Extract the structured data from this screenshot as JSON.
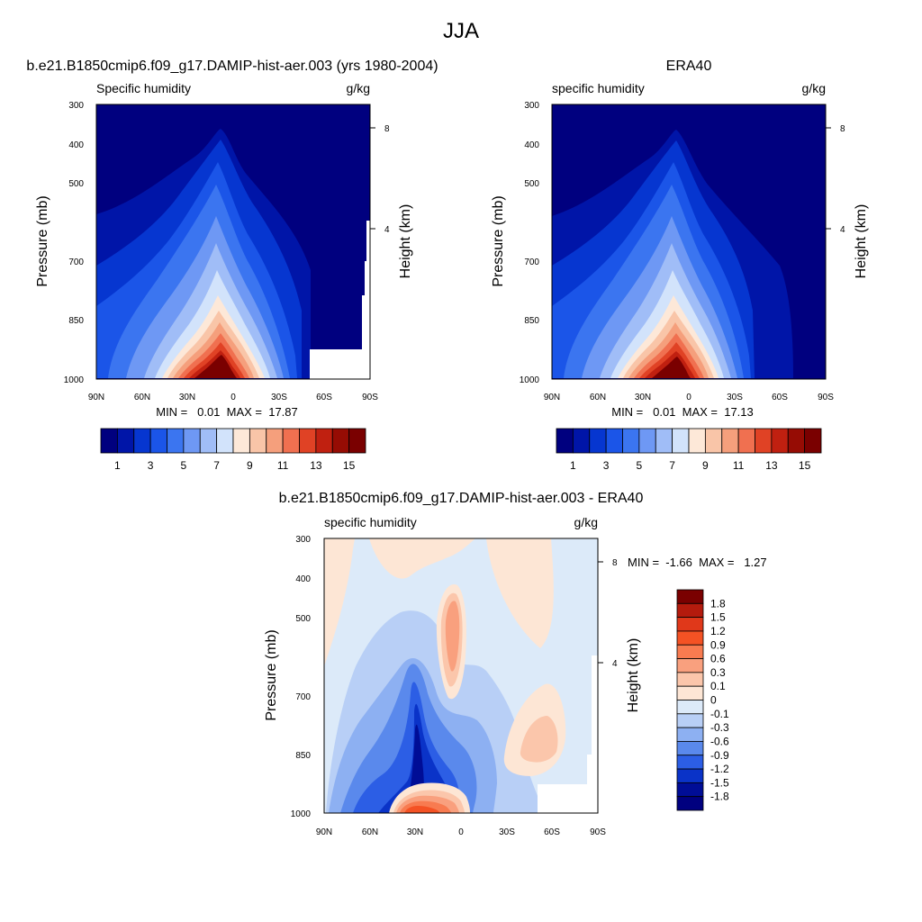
{
  "figure": {
    "title": "JJA"
  },
  "panels": [
    {
      "id": "model",
      "title": "b.e21.B1850cmip6.f09_g17.DAMIP-hist-aer.003 (yrs 1980-2004)",
      "left_label": "Specific humidity",
      "right_label": "g/kg",
      "ylabel": "Pressure (mb)",
      "y2label": "Height (km)",
      "stats": "MIN =   0.01  MAX =  17.87"
    },
    {
      "id": "obs",
      "title": "ERA40",
      "left_label": "specific humidity",
      "right_label": "g/kg",
      "ylabel": "Pressure (mb)",
      "y2label": "Height (km)",
      "stats": "MIN =   0.01  MAX =  17.13"
    },
    {
      "id": "diff",
      "title": "b.e21.B1850cmip6.f09_g17.DAMIP-hist-aer.003 - ERA40",
      "left_label": "specific humidity",
      "right_label": "g/kg",
      "ylabel": "Pressure (mb)",
      "y2label": "Height (km)",
      "stats": "MIN =  -1.66  MAX =   1.27"
    }
  ],
  "chart_data": [
    {
      "type": "heatmap",
      "panel": "model",
      "field": "specific humidity (g/kg), zonal mean",
      "x_ticks": [
        "90N",
        "60N",
        "30N",
        "0",
        "30S",
        "60S",
        "90S"
      ],
      "y_ticks": [
        "300",
        "400",
        "500",
        "700",
        "850",
        "1000"
      ],
      "y2_ticks": [
        "8",
        "4"
      ],
      "min": 0.01,
      "max": 17.87,
      "peak": {
        "lat": 10,
        "pressure": 1000,
        "value": 17.87
      },
      "colorbar_ticks": [
        "1",
        "3",
        "5",
        "7",
        "9",
        "11",
        "13",
        "15"
      ]
    },
    {
      "type": "heatmap",
      "panel": "obs",
      "field": "specific humidity (g/kg), zonal mean",
      "x_ticks": [
        "90N",
        "60N",
        "30N",
        "0",
        "30S",
        "60S",
        "90S"
      ],
      "y_ticks": [
        "300",
        "400",
        "500",
        "700",
        "850",
        "1000"
      ],
      "y2_ticks": [
        "8",
        "4"
      ],
      "min": 0.01,
      "max": 17.13,
      "peak": {
        "lat": 10,
        "pressure": 1000,
        "value": 17.13
      },
      "colorbar_ticks": [
        "1",
        "3",
        "5",
        "7",
        "9",
        "11",
        "13",
        "15"
      ]
    },
    {
      "type": "heatmap",
      "panel": "diff",
      "field": "specific humidity difference (g/kg)",
      "x_ticks": [
        "90N",
        "60N",
        "30N",
        "0",
        "30S",
        "60S",
        "90S"
      ],
      "y_ticks": [
        "300",
        "400",
        "500",
        "700",
        "850",
        "1000"
      ],
      "y2_ticks": [
        "8",
        "4"
      ],
      "min": -1.66,
      "max": 1.27,
      "colorbar_levels": [
        "1.8",
        "1.5",
        "1.2",
        "0.9",
        "0.6",
        "0.3",
        "0.1",
        "0",
        "-0.1",
        "-0.3",
        "-0.6",
        "-0.9",
        "-1.2",
        "-1.5",
        "-1.8"
      ]
    }
  ],
  "colors": {
    "abs_palette": [
      "#00007f",
      "#0015a8",
      "#0636d0",
      "#1b55e8",
      "#3b75f0",
      "#6e98f4",
      "#a0bdf7",
      "#d2e3fb",
      "#fde8d8",
      "#f9c5a8",
      "#f59f7c",
      "#f07050",
      "#e04225",
      "#c02010",
      "#960c04",
      "#7a0000"
    ],
    "diff_palette": [
      "#7a0000",
      "#b41b0d",
      "#e0381a",
      "#f45224",
      "#f87b50",
      "#f9a07e",
      "#fbc6ab",
      "#fde6d5",
      "#dceaf9",
      "#b8cff6",
      "#8db0f2",
      "#5a89ec",
      "#2c5ee5",
      "#0a33c8",
      "#000d96",
      "#00007f"
    ]
  }
}
